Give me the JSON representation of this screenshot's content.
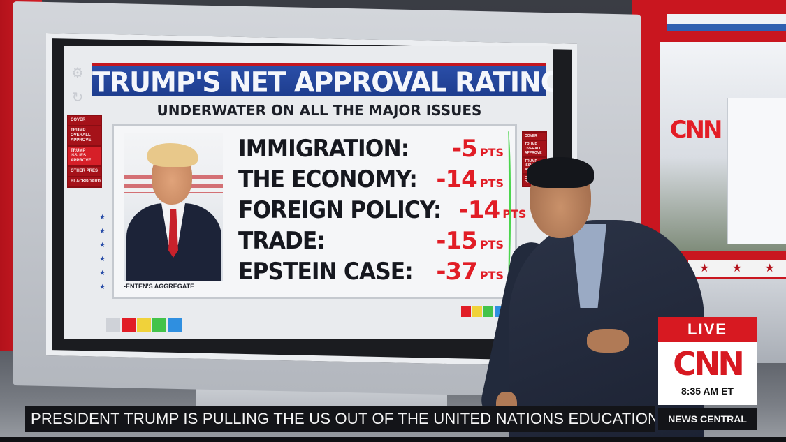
{
  "screen": {
    "title": "TRUMP'S NET APPROVAL RATING",
    "subtitle": "UNDERWATER ON ALL THE MAJOR ISSUES",
    "photo_credit": "-ENTEN'S AGGREGATE",
    "side_menu": [
      "COVER",
      "TRUMP OVERALL APPROVE",
      "TRUMP ISSUES APPROVE",
      "OTHER PRES",
      "BLACKBOARD"
    ],
    "right_menu": [
      "COVER",
      "TRUMP OVERALL APPROVE",
      "TRUMP ISSUES APPROVE",
      "OTHER PRES"
    ],
    "issues": [
      {
        "label": "IMMIGRATION:",
        "value": "-5",
        "unit": "PTS"
      },
      {
        "label": "THE ECONOMY:",
        "value": "-14",
        "unit": "PTS"
      },
      {
        "label": "FOREIGN POLICY:",
        "value": "-14",
        "unit": "PTS"
      },
      {
        "label": "TRADE:",
        "value": "-15",
        "unit": "PTS"
      },
      {
        "label": "EPSTEIN CASE:",
        "value": "-37",
        "unit": "PTS"
      }
    ],
    "colors": {
      "accent_red": "#e11d26",
      "title_blue": "#2a4ea8",
      "check_green": "#3ad23c"
    },
    "palette": [
      "#e11d26",
      "#f0d23a",
      "#43c34a",
      "#2f8fe0"
    ]
  },
  "studio": {
    "wall_logo": "CNN"
  },
  "live_bug": {
    "live_label": "LIVE",
    "logo": "CNN",
    "time": "8:35 AM ET"
  },
  "ticker": {
    "text": "PRESIDENT TRUMP IS PULLING THE US OUT OF THE UNITED NATIONS EDUCATIONAL SC",
    "show_name": "NEWS CENTRAL"
  }
}
